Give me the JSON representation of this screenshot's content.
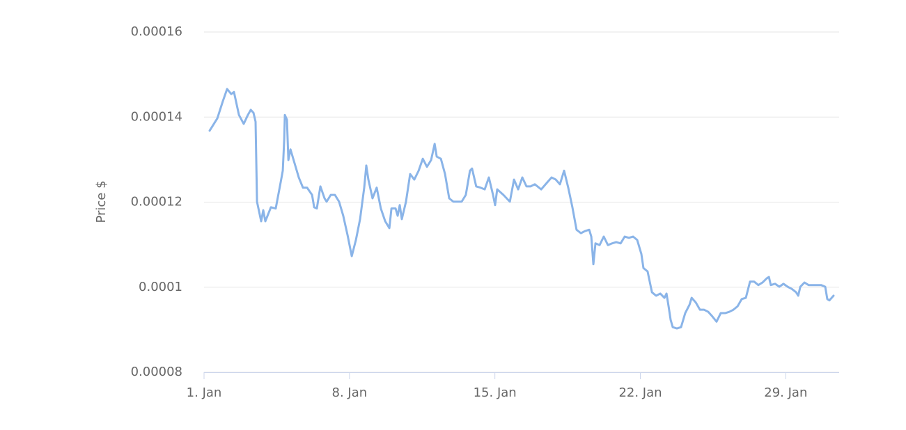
{
  "chart_data": {
    "type": "line",
    "y_label": "Price $",
    "ylim": [
      8e-05,
      0.00016
    ],
    "yticks": [
      8e-05,
      0.0001,
      0.00012,
      0.00014,
      0.00016
    ],
    "xlim": [
      1,
      31.57
    ],
    "xticks": [
      {
        "value": 1,
        "label": "1. Jan"
      },
      {
        "value": 8,
        "label": "8. Jan"
      },
      {
        "value": 15,
        "label": "15. Jan"
      },
      {
        "value": 22,
        "label": "22. Jan"
      },
      {
        "value": 29,
        "label": "29. Jan"
      }
    ],
    "grid": true,
    "series": [
      {
        "color": "#8ab4e8",
        "x": [
          1.27,
          1.64,
          1.91,
          2.11,
          2.31,
          2.44,
          2.68,
          2.91,
          3.11,
          3.25,
          3.38,
          3.48,
          3.55,
          3.75,
          3.85,
          3.95,
          4.22,
          4.45,
          4.69,
          4.79,
          4.86,
          4.89,
          4.99,
          5.06,
          5.16,
          5.36,
          5.56,
          5.76,
          5.96,
          6.2,
          6.3,
          6.43,
          6.6,
          6.8,
          6.9,
          7.1,
          7.3,
          7.5,
          7.7,
          7.91,
          8.11,
          8.31,
          8.51,
          8.71,
          8.81,
          8.91,
          9.11,
          9.31,
          9.51,
          9.72,
          9.92,
          10.02,
          10.22,
          10.32,
          10.42,
          10.52,
          10.72,
          10.92,
          11.12,
          11.33,
          11.53,
          11.73,
          11.93,
          12.1,
          12.2,
          12.4,
          12.6,
          12.8,
          13.0,
          13.2,
          13.4,
          13.6,
          13.8,
          13.9,
          14.1,
          14.31,
          14.51,
          14.71,
          14.91,
          15.01,
          15.11,
          15.41,
          15.72,
          15.92,
          16.12,
          16.32,
          16.52,
          16.72,
          16.92,
          17.23,
          17.53,
          17.73,
          17.93,
          18.13,
          18.33,
          18.53,
          18.73,
          18.93,
          19.14,
          19.34,
          19.54,
          19.64,
          19.74,
          19.84,
          20.04,
          20.24,
          20.44,
          20.64,
          20.84,
          21.05,
          21.25,
          21.45,
          21.65,
          21.85,
          22.05,
          22.15,
          22.35,
          22.56,
          22.76,
          22.96,
          23.16,
          23.26,
          23.36,
          23.46,
          23.56,
          23.76,
          23.96,
          24.16,
          24.37,
          24.47,
          24.67,
          24.87,
          25.07,
          25.27,
          25.47,
          25.67,
          25.87,
          26.08,
          26.28,
          26.48,
          26.68,
          26.88,
          27.08,
          27.28,
          27.48,
          27.68,
          27.88,
          28.09,
          28.19,
          28.28,
          28.49,
          28.69,
          28.89,
          29.09,
          29.29,
          29.5,
          29.6,
          29.7,
          29.9,
          30.1,
          30.3,
          30.5,
          30.7,
          30.9,
          31.0,
          31.1,
          31.3
        ],
        "values": [
          0.0001368,
          0.0001397,
          0.0001438,
          0.0001466,
          0.0001454,
          0.0001459,
          0.0001405,
          0.0001384,
          0.0001405,
          0.0001417,
          0.000141,
          0.0001389,
          0.0001201,
          0.0001155,
          0.0001181,
          0.0001155,
          0.0001188,
          0.0001185,
          0.0001247,
          0.0001274,
          0.0001348,
          0.0001405,
          0.0001394,
          0.0001299,
          0.0001324,
          0.0001291,
          0.0001258,
          0.0001234,
          0.0001234,
          0.0001217,
          0.0001188,
          0.0001185,
          0.0001237,
          0.0001209,
          0.0001201,
          0.0001217,
          0.0001217,
          0.0001201,
          0.0001168,
          0.0001122,
          0.0001073,
          0.0001111,
          0.000116,
          0.0001234,
          0.0001286,
          0.0001253,
          0.0001209,
          0.0001234,
          0.0001185,
          0.0001155,
          0.0001139,
          0.0001185,
          0.0001185,
          0.0001168,
          0.0001193,
          0.000116,
          0.0001201,
          0.0001266,
          0.0001253,
          0.0001274,
          0.0001302,
          0.0001283,
          0.0001299,
          0.0001337,
          0.0001307,
          0.0001302,
          0.0001266,
          0.0001209,
          0.0001201,
          0.0001201,
          0.0001201,
          0.0001217,
          0.0001274,
          0.0001279,
          0.0001237,
          0.0001234,
          0.000123,
          0.0001258,
          0.0001217,
          0.0001193,
          0.000123,
          0.0001217,
          0.0001201,
          0.0001253,
          0.000123,
          0.0001258,
          0.0001237,
          0.0001237,
          0.0001242,
          0.000123,
          0.0001247,
          0.0001258,
          0.0001253,
          0.0001242,
          0.0001274,
          0.0001234,
          0.0001188,
          0.0001135,
          0.0001127,
          0.0001132,
          0.0001135,
          0.0001119,
          0.0001054,
          0.0001103,
          0.0001099,
          0.0001119,
          0.0001099,
          0.0001103,
          0.0001106,
          0.0001103,
          0.0001119,
          0.0001116,
          0.0001119,
          0.0001111,
          0.0001078,
          0.0001045,
          0.0001037,
          9.88e-05,
          9.8e-05,
          9.85e-05,
          9.75e-05,
          9.85e-05,
          9.55e-05,
          9.23e-05,
          9.06e-05,
          9.03e-05,
          9.06e-05,
          9.39e-05,
          9.59e-05,
          9.75e-05,
          9.64e-05,
          9.47e-05,
          9.47e-05,
          9.42e-05,
          9.31e-05,
          9.19e-05,
          9.39e-05,
          9.39e-05,
          9.42e-05,
          9.47e-05,
          9.55e-05,
          9.72e-05,
          9.75e-05,
          0.0001013,
          0.0001013,
          0.0001005,
          0.0001011,
          0.0001021,
          0.0001024,
          0.0001005,
          0.0001008,
          0.0001001,
          0.0001008,
          0.0001001,
          9.96e-05,
          9.88e-05,
          9.8e-05,
          0.0001001,
          0.0001011,
          0.0001005,
          0.0001005,
          0.0001005,
          0.0001005,
          0.0001001,
          9.72e-05,
          9.69e-05,
          9.8e-05
        ]
      }
    ]
  }
}
